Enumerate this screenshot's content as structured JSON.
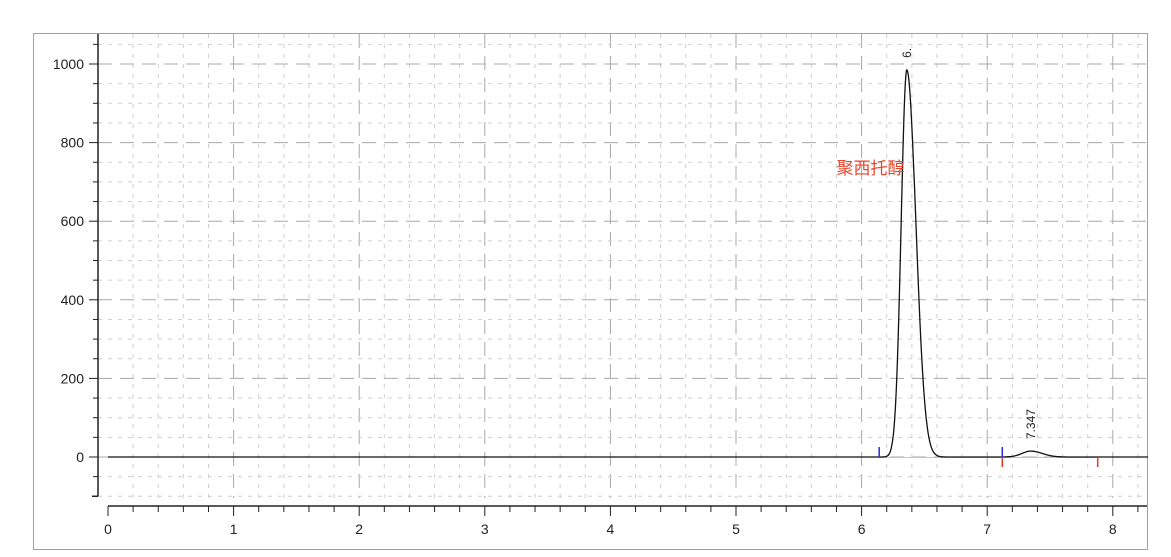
{
  "chart_data": {
    "type": "line",
    "title": "",
    "xlabel": "",
    "ylabel": "",
    "xlim": [
      0,
      8.28
    ],
    "ylim": [
      -100,
      1080
    ],
    "x_ticks": [
      0,
      1,
      2,
      3,
      4,
      5,
      6,
      7,
      8
    ],
    "y_ticks": [
      0,
      200,
      400,
      600,
      800,
      1000
    ],
    "x_minor_step": 0.2,
    "y_minor_step": 50,
    "grid": true,
    "peaks": [
      {
        "label": "6.",
        "retention_time": 6.36,
        "height": 985
      },
      {
        "label": "7.347",
        "retention_time": 7.347,
        "height": 15
      }
    ],
    "integration_markers": [
      {
        "x": 6.14,
        "color": "#2a2ae0"
      },
      {
        "x": 7.12,
        "color": "#2a2ae0"
      },
      {
        "x": 7.12,
        "color": "#e03a2a"
      },
      {
        "x": 7.88,
        "color": "#e03a2a"
      }
    ],
    "annotation": {
      "text": "聚西托醇",
      "x": 5.8,
      "y": 720,
      "color": "#e8452c"
    },
    "colors": {
      "trace": "#111111",
      "baseline": "#f0b0b0",
      "grid": "#bdbdbd"
    }
  }
}
